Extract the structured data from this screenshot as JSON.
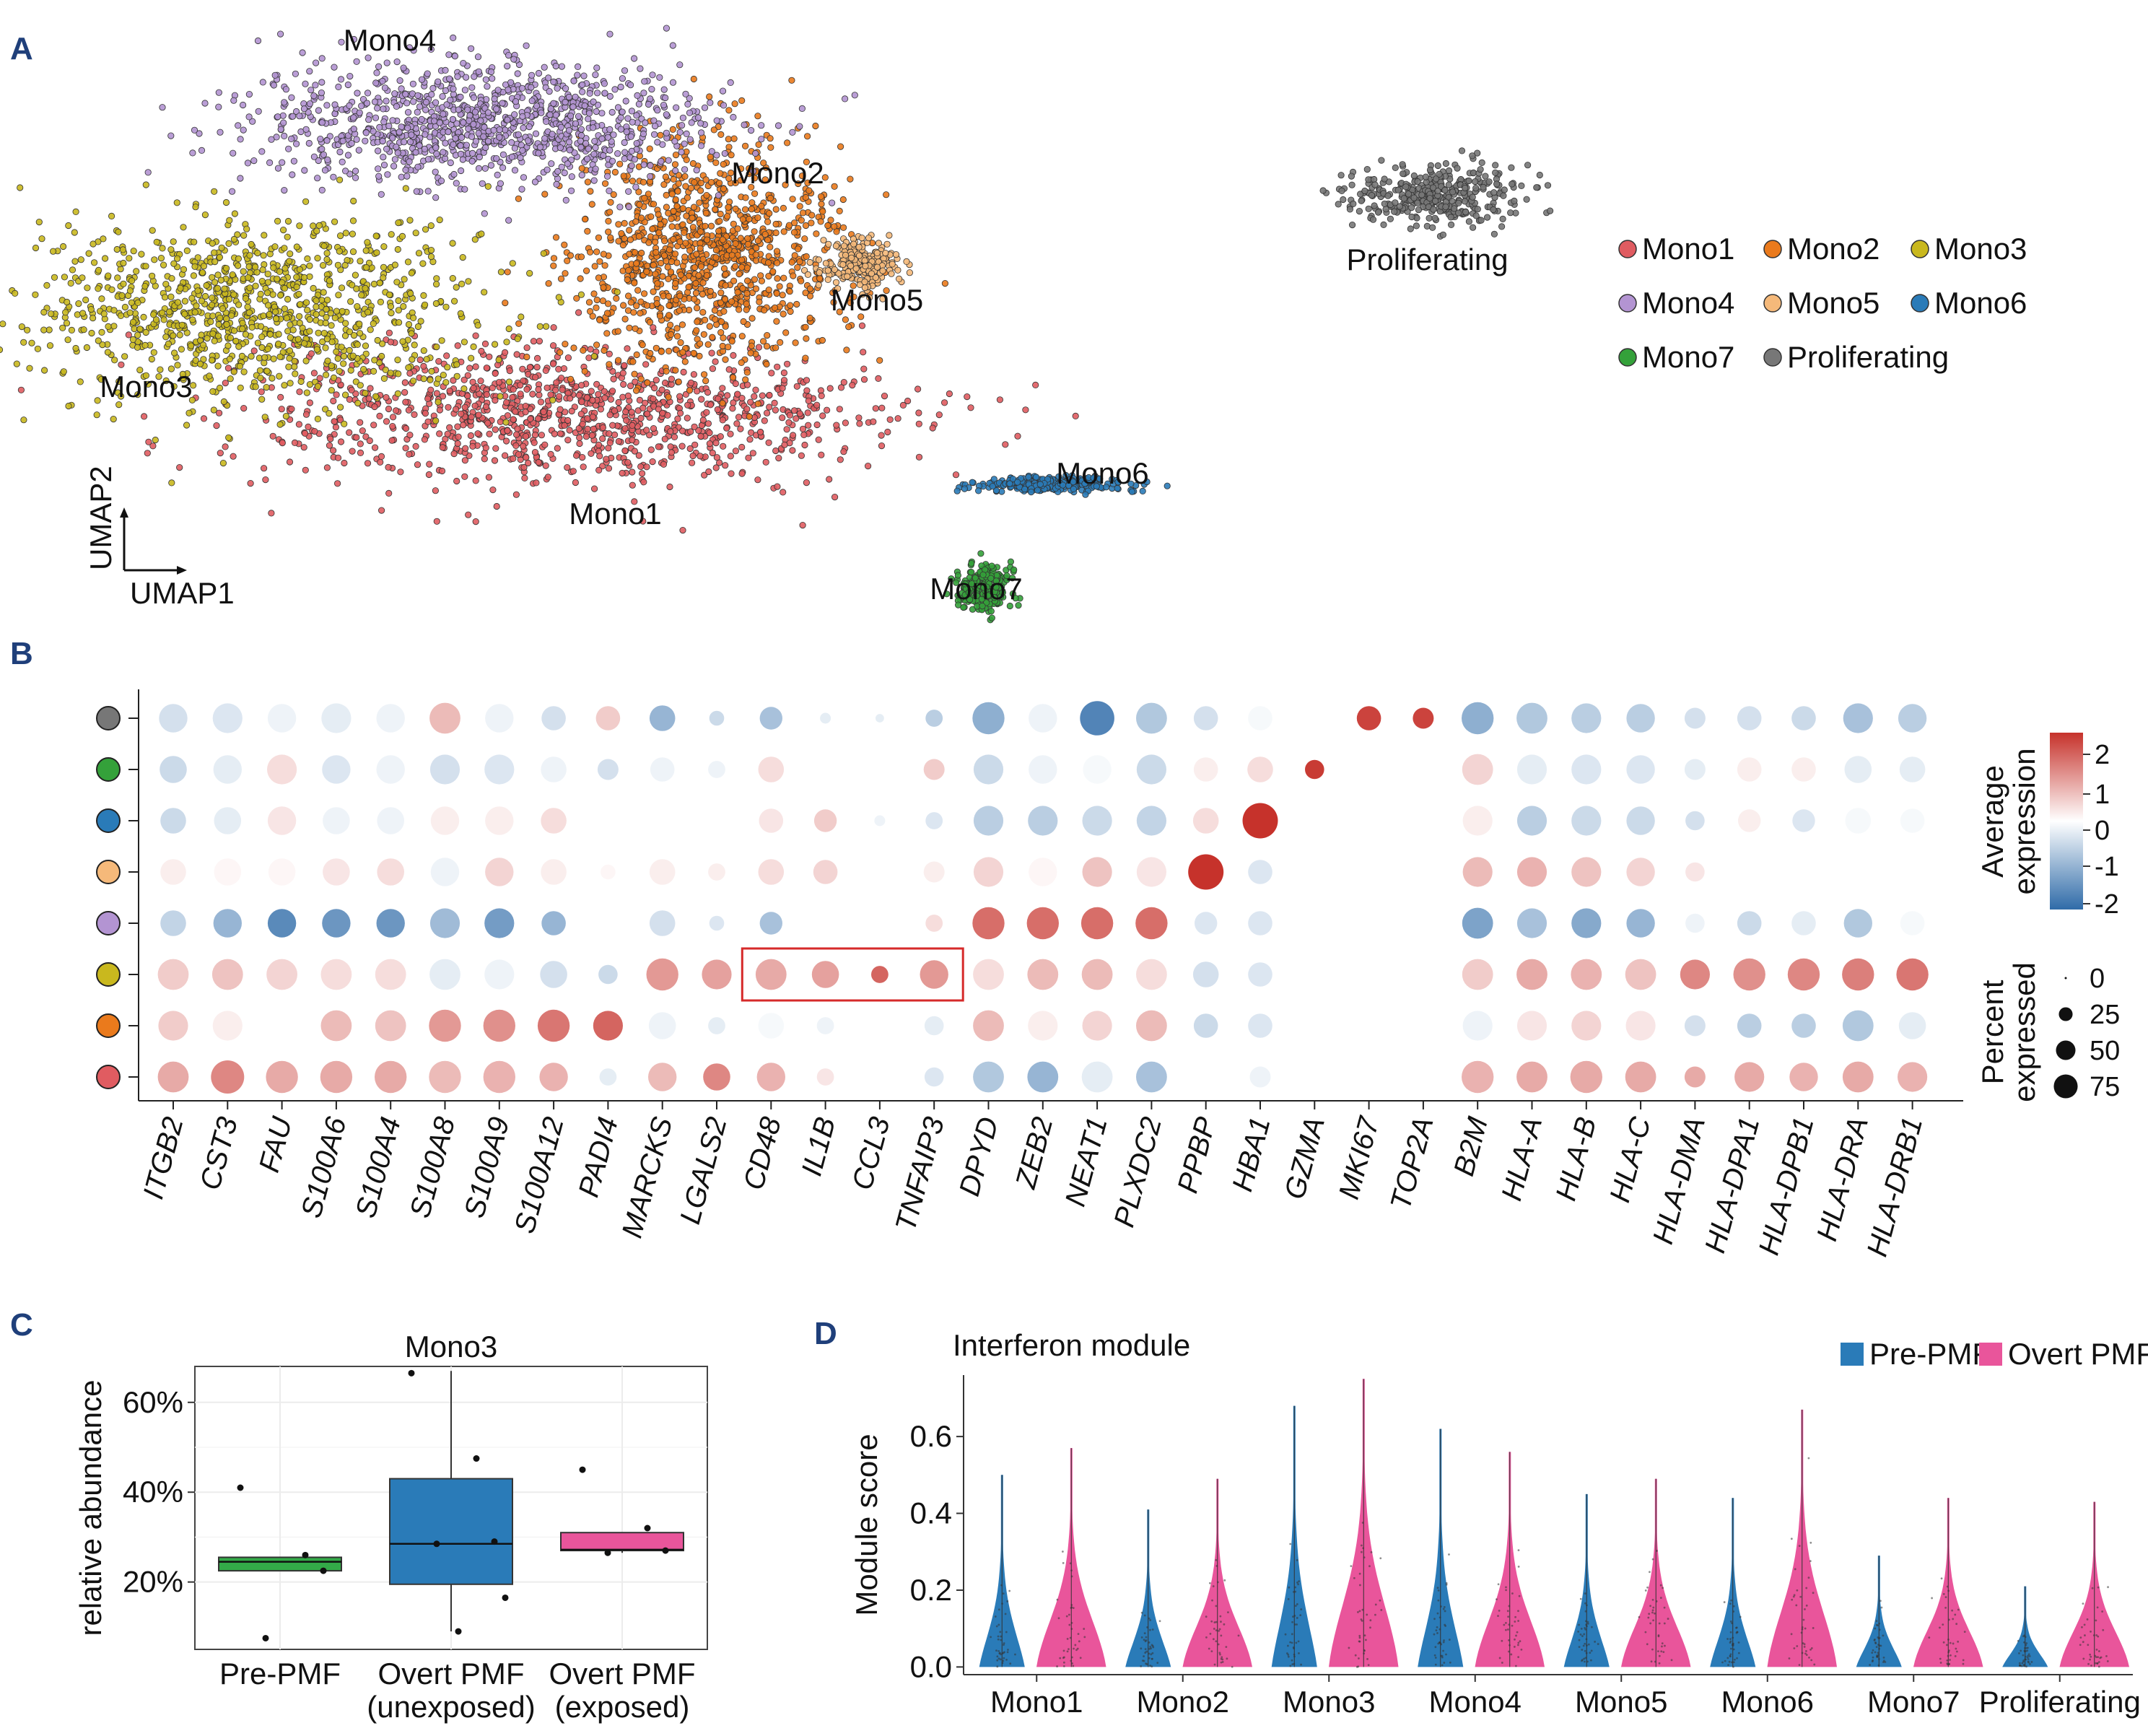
{
  "panels": [
    "A",
    "B",
    "C",
    "D"
  ],
  "clusters": [
    {
      "name": "Mono1",
      "color": "#e05c61"
    },
    {
      "name": "Mono2",
      "color": "#ea7a1c"
    },
    {
      "name": "Mono3",
      "color": "#c9b81e"
    },
    {
      "name": "Mono4",
      "color": "#b394d2"
    },
    {
      "name": "Mono5",
      "color": "#f5b97a"
    },
    {
      "name": "Mono6",
      "color": "#2a7bb8"
    },
    {
      "name": "Mono7",
      "color": "#34a13a"
    },
    {
      "name": "Proliferating",
      "color": "#777777"
    }
  ],
  "umap": {
    "xlabel": "UMAP1",
    "ylabel": "UMAP2",
    "labels": [
      {
        "cluster": "Mono4",
        "x": -4.0,
        "y": 9.5
      },
      {
        "cluster": "Mono2",
        "x": 0.3,
        "y": 7.2
      },
      {
        "cluster": "Mono5",
        "x": 1.4,
        "y": 5.0
      },
      {
        "cluster": "Mono3",
        "x": -6.7,
        "y": 3.5
      },
      {
        "cluster": "Mono1",
        "x": -1.5,
        "y": 1.3
      },
      {
        "cluster": "Mono6",
        "x": 3.9,
        "y": 2.0
      },
      {
        "cluster": "Mono7",
        "x": 2.5,
        "y": 0.0
      },
      {
        "cluster": "Proliferating",
        "x": 7.5,
        "y": 5.7
      }
    ]
  },
  "chart_data": [
    {
      "panel": "A",
      "type": "scatter",
      "title": "",
      "xlabel": "UMAP1",
      "ylabel": "UMAP2",
      "legend": "right",
      "series": [
        {
          "name": "Mono1",
          "center": [
            -2.0,
            3.2
          ],
          "spread": [
            3.5,
            1.2
          ]
        },
        {
          "name": "Mono2",
          "center": [
            -0.5,
            6.0
          ],
          "spread": [
            1.5,
            1.8
          ]
        },
        {
          "name": "Mono3",
          "center": [
            -5.5,
            5.0
          ],
          "spread": [
            2.5,
            1.6
          ]
        },
        {
          "name": "Mono4",
          "center": [
            -3.0,
            8.2
          ],
          "spread": [
            2.6,
            1.1
          ]
        },
        {
          "name": "Mono5",
          "center": [
            1.2,
            5.8
          ],
          "spread": [
            0.4,
            0.4
          ]
        },
        {
          "name": "Mono6",
          "center": [
            3.3,
            2.0
          ],
          "spread": [
            0.9,
            0.15
          ]
        },
        {
          "name": "Mono7",
          "center": [
            2.6,
            0.2
          ],
          "spread": [
            0.3,
            0.4
          ]
        },
        {
          "name": "Proliferating",
          "center": [
            7.6,
            7.0
          ],
          "spread": [
            0.9,
            0.5
          ]
        }
      ]
    },
    {
      "panel": "B",
      "type": "scatter",
      "title": "",
      "genes": [
        "ITGB2",
        "CST3",
        "FAU",
        "S100A6",
        "S100A4",
        "S100A8",
        "S100A9",
        "S100A12",
        "PADI4",
        "MARCKS",
        "LGALS2",
        "CD48",
        "IL1B",
        "CCL3",
        "TNFAIP3",
        "DPYD",
        "ZEB2",
        "NEAT1",
        "PLXDC2",
        "PPBP",
        "HBA1",
        "GZMA",
        "MKI67",
        "TOP2A",
        "B2M",
        "HLA-A",
        "HLA-B",
        "HLA-C",
        "HLA-DMA",
        "HLA-DPA1",
        "HLA-DPB1",
        "HLA-DRA",
        "HLA-DRB1"
      ],
      "rows": [
        "Proliferating",
        "Mono7",
        "Mono6",
        "Mono5",
        "Mono4",
        "Mono3",
        "Mono2",
        "Mono1"
      ],
      "avg_expression": [
        [
          -0.5,
          -0.4,
          -0.2,
          -0.3,
          -0.2,
          0.8,
          -0.2,
          -0.5,
          0.6,
          -1.2,
          -0.6,
          -1.0,
          -0.3,
          -0.3,
          -0.8,
          -1.3,
          -0.2,
          -2.0,
          -0.9,
          -0.5,
          -0.1,
          0,
          2.2,
          2.2,
          -1.3,
          -0.9,
          -0.8,
          -0.8,
          -0.5,
          -0.5,
          -0.6,
          -1.0,
          -0.8
        ],
        [
          -0.6,
          -0.3,
          0.4,
          -0.4,
          -0.2,
          -0.5,
          -0.4,
          -0.2,
          -0.5,
          -0.2,
          -0.2,
          0.4,
          0,
          0,
          0.6,
          -0.6,
          -0.2,
          -0.1,
          -0.6,
          0.2,
          0.4,
          2.3,
          0,
          0,
          0.5,
          -0.3,
          -0.4,
          -0.4,
          -0.3,
          0.2,
          0.2,
          -0.3,
          -0.3
        ],
        [
          -0.6,
          -0.3,
          0.3,
          -0.2,
          -0.2,
          0.2,
          0.2,
          0.4,
          0,
          0,
          0,
          0.3,
          0.6,
          -0.2,
          -0.4,
          -0.8,
          -0.8,
          -0.6,
          -0.7,
          0.4,
          2.4,
          0,
          0,
          0,
          0.2,
          -0.8,
          -0.6,
          -0.6,
          -0.5,
          0.2,
          -0.4,
          -0.1,
          -0.1
        ],
        [
          0.2,
          0.1,
          0.1,
          0.3,
          0.4,
          -0.2,
          0.5,
          0.2,
          0.1,
          0.2,
          0.2,
          0.4,
          0.5,
          0,
          0.2,
          0.5,
          0.1,
          0.7,
          0.3,
          2.4,
          -0.4,
          0,
          0,
          0,
          0.8,
          0.9,
          0.7,
          0.5,
          0.3,
          0,
          0,
          0,
          0
        ],
        [
          -0.7,
          -1.2,
          -1.9,
          -1.7,
          -1.7,
          -1.1,
          -1.6,
          -1.2,
          0,
          -0.5,
          -0.4,
          -1.0,
          0,
          0,
          0.4,
          1.7,
          1.7,
          1.7,
          1.7,
          -0.4,
          -0.4,
          0,
          0,
          0,
          -1.5,
          -1.0,
          -1.4,
          -1.2,
          -0.2,
          -0.6,
          -0.3,
          -0.9,
          -0.1
        ],
        [
          0.6,
          0.7,
          0.5,
          0.4,
          0.4,
          -0.3,
          -0.2,
          -0.5,
          -0.6,
          1.2,
          1.1,
          1.0,
          1.1,
          1.8,
          1.2,
          0.4,
          0.8,
          0.8,
          0.4,
          -0.5,
          -0.4,
          0,
          0,
          0,
          0.6,
          1.0,
          0.9,
          0.7,
          1.4,
          1.3,
          1.4,
          1.5,
          1.6
        ],
        [
          0.6,
          0.2,
          0,
          0.8,
          0.7,
          1.2,
          1.3,
          1.6,
          1.8,
          -0.2,
          -0.3,
          -0.1,
          -0.2,
          0,
          -0.3,
          0.8,
          0.2,
          0.5,
          0.8,
          -0.6,
          -0.4,
          0,
          0,
          0,
          -0.2,
          0.3,
          0.5,
          0.3,
          -0.5,
          -0.8,
          -0.8,
          -0.9,
          -0.3
        ],
        [
          1.0,
          1.4,
          1.0,
          1.0,
          1.0,
          0.8,
          0.9,
          0.9,
          -0.3,
          0.8,
          1.4,
          0.9,
          0.3,
          0,
          -0.4,
          -0.9,
          -1.2,
          -0.3,
          -1.0,
          0,
          -0.2,
          0,
          0,
          0,
          0.9,
          1.0,
          1.0,
          1.0,
          1.0,
          1.0,
          0.9,
          1.0,
          0.9
        ]
      ],
      "pct_expressed": [
        [
          55,
          60,
          55,
          60,
          55,
          65,
          55,
          40,
          40,
          45,
          15,
          35,
          8,
          5,
          20,
          70,
          55,
          80,
          65,
          40,
          40,
          3,
          40,
          30,
          70,
          65,
          60,
          55,
          30,
          40,
          40,
          60,
          55
        ],
        [
          50,
          55,
          60,
          55,
          55,
          60,
          60,
          45,
          30,
          40,
          20,
          45,
          10,
          5,
          30,
          60,
          55,
          55,
          60,
          40,
          45,
          25,
          5,
          5,
          65,
          60,
          60,
          55,
          30,
          40,
          40,
          50,
          45
        ],
        [
          45,
          50,
          55,
          50,
          50,
          55,
          55,
          45,
          20,
          40,
          15,
          40,
          35,
          8,
          20,
          60,
          60,
          60,
          60,
          45,
          85,
          5,
          5,
          5,
          60,
          60,
          60,
          55,
          25,
          35,
          35,
          45,
          40
        ],
        [
          45,
          50,
          50,
          50,
          50,
          55,
          55,
          45,
          15,
          45,
          20,
          45,
          40,
          5,
          30,
          60,
          55,
          60,
          60,
          85,
          40,
          5,
          5,
          5,
          60,
          60,
          60,
          55,
          25,
          30,
          30,
          40,
          40
        ],
        [
          45,
          55,
          55,
          55,
          55,
          60,
          60,
          40,
          10,
          45,
          15,
          35,
          8,
          5,
          20,
          70,
          70,
          70,
          70,
          35,
          40,
          5,
          5,
          5,
          65,
          60,
          60,
          55,
          25,
          40,
          40,
          55,
          40
        ],
        [
          65,
          65,
          65,
          65,
          65,
          65,
          60,
          50,
          25,
          70,
          60,
          65,
          50,
          20,
          55,
          65,
          65,
          65,
          65,
          45,
          40,
          5,
          5,
          5,
          65,
          65,
          65,
          65,
          60,
          70,
          70,
          70,
          70
        ],
        [
          60,
          60,
          55,
          65,
          65,
          70,
          70,
          70,
          60,
          50,
          20,
          45,
          20,
          5,
          25,
          65,
          60,
          60,
          65,
          40,
          40,
          5,
          5,
          5,
          60,
          60,
          60,
          60,
          30,
          40,
          40,
          65,
          50
        ],
        [
          65,
          75,
          70,
          70,
          70,
          70,
          70,
          55,
          20,
          55,
          50,
          55,
          20,
          5,
          25,
          65,
          65,
          65,
          65,
          10,
          30,
          5,
          5,
          5,
          70,
          65,
          70,
          65,
          30,
          60,
          55,
          65,
          60
        ]
      ],
      "highlight": {
        "row": "Mono3",
        "genes": [
          "CD48",
          "IL1B",
          "CCL3",
          "TNFAIP3"
        ]
      },
      "color_legend": {
        "title": "Average expression",
        "ticks": [
          "2",
          "1",
          "0",
          "-1",
          "-2"
        ],
        "low": "#2f6ba8",
        "mid": "#ffffff",
        "high": "#c6322b"
      },
      "size_legend": {
        "title": "Percent expressed",
        "ticks": [
          "0",
          "25",
          "50",
          "75"
        ]
      }
    },
    {
      "panel": "C",
      "type": "box",
      "title": "Mono3",
      "xlabel": "",
      "ylabel": "relative abundance",
      "yticks": [
        "20%",
        "40%",
        "60%"
      ],
      "ylim": [
        0.05,
        0.68
      ],
      "groups": [
        {
          "label_line1": "Pre-PMF",
          "label_line2": "",
          "color": "#33aa48",
          "q1": 0.225,
          "median": 0.245,
          "q3": 0.255,
          "whisker_low": 0.225,
          "whisker_high": 0.255,
          "points": [
            0.41,
            0.26,
            0.225,
            0.075
          ]
        },
        {
          "label_line1": "Overt PMF",
          "label_line2": "(unexposed)",
          "color": "#2a7bb8",
          "q1": 0.195,
          "median": 0.285,
          "q3": 0.43,
          "whisker_low": 0.09,
          "whisker_high": 0.67,
          "points": [
            0.665,
            0.475,
            0.29,
            0.285,
            0.165,
            0.09
          ]
        },
        {
          "label_line1": "Overt PMF",
          "label_line2": "(exposed)",
          "color": "#e9559b",
          "q1": 0.27,
          "median": 0.272,
          "q3": 0.31,
          "whisker_low": 0.265,
          "whisker_high": 0.31,
          "points": [
            0.45,
            0.32,
            0.27,
            0.265
          ]
        }
      ]
    },
    {
      "panel": "D",
      "type": "violin",
      "title": "Interferon module",
      "xlabel": "",
      "ylabel": "Module score",
      "ylim": [
        -0.02,
        0.76
      ],
      "yticks": [
        "0.0",
        "0.2",
        "0.4",
        "0.6"
      ],
      "legend": "top-right",
      "series": [
        {
          "name": "Pre-PMF",
          "color": "#2a7bb8"
        },
        {
          "name": "Overt PMF",
          "color": "#e9559b"
        }
      ],
      "categories": [
        "Mono1",
        "Mono2",
        "Mono3",
        "Mono4",
        "Mono5",
        "Mono6",
        "Mono7",
        "Proliferating"
      ],
      "pre_max": [
        0.5,
        0.41,
        0.68,
        0.62,
        0.45,
        0.44,
        0.29,
        0.21
      ],
      "overt_max": [
        0.57,
        0.49,
        0.75,
        0.56,
        0.49,
        0.67,
        0.44,
        0.43
      ]
    }
  ]
}
